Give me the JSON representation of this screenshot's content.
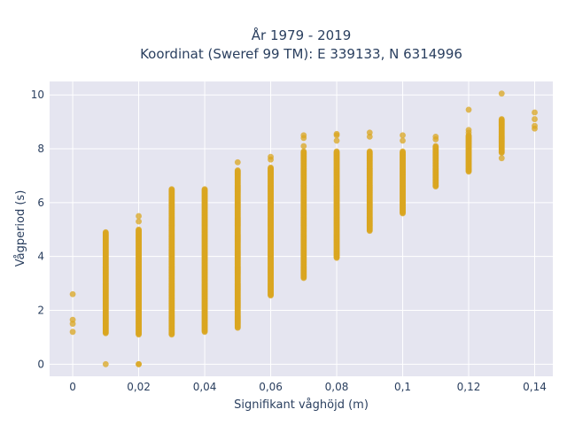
{
  "chart_data": {
    "type": "scatter",
    "title": [
      "År 1979 - 2019",
      "Koordinat (Sweref 99 TM): E 339133, N 6314996"
    ],
    "xlabel": "Signifikant våghöjd (m)",
    "ylabel": "Vågperiod (s)",
    "xlim": [
      -0.007,
      0.1455
    ],
    "ylim": [
      -0.45,
      10.5
    ],
    "grid": true,
    "xticks": [
      0,
      0.02,
      0.04,
      0.06,
      0.08,
      0.1,
      0.12,
      0.14
    ],
    "xtick_labels": [
      "0",
      "0,02",
      "0,04",
      "0,06",
      "0,08",
      "0,1",
      "0,12",
      "0,14"
    ],
    "yticks": [
      0,
      2,
      4,
      6,
      8,
      10
    ],
    "ytick_labels": [
      "0",
      "2",
      "4",
      "6",
      "8",
      "10"
    ],
    "marker_color": "#DAA520",
    "columns": [
      {
        "x": 0,
        "outliers": [
          2.6,
          1.65,
          1.5,
          1.2
        ]
      },
      {
        "x": 0.01,
        "range": [
          1.15,
          4.9
        ],
        "outliers": [
          0
        ]
      },
      {
        "x": 0.02,
        "range": [
          1.1,
          5.0
        ],
        "outliers": [
          5.5,
          5.3,
          0,
          0
        ]
      },
      {
        "x": 0.03,
        "range": [
          1.1,
          6.5
        ]
      },
      {
        "x": 0.04,
        "range": [
          1.2,
          6.5
        ]
      },
      {
        "x": 0.05,
        "range": [
          1.35,
          7.2
        ],
        "outliers": [
          7.5
        ]
      },
      {
        "x": 0.06,
        "range": [
          2.55,
          7.3
        ],
        "outliers": [
          7.7,
          7.6
        ]
      },
      {
        "x": 0.07,
        "range": [
          3.2,
          7.9
        ],
        "outliers": [
          8.5,
          8.4,
          8.1
        ]
      },
      {
        "x": 0.08,
        "range": [
          3.95,
          7.9
        ],
        "outliers": [
          8.55,
          8.5,
          8.3
        ]
      },
      {
        "x": 0.09,
        "range": [
          4.95,
          7.9
        ],
        "outliers": [
          8.6,
          8.45
        ]
      },
      {
        "x": 0.1,
        "range": [
          5.6,
          7.9
        ],
        "outliers": [
          8.5,
          8.3
        ]
      },
      {
        "x": 0.11,
        "range": [
          6.6,
          8.1
        ],
        "outliers": [
          8.45,
          8.35
        ]
      },
      {
        "x": 0.12,
        "range": [
          7.15,
          8.5
        ],
        "outliers": [
          9.45,
          8.7,
          8.6
        ]
      },
      {
        "x": 0.13,
        "range": [
          7.85,
          9.1
        ],
        "outliers": [
          10.05,
          7.65
        ]
      },
      {
        "x": 0.14,
        "outliers": [
          9.35,
          9.1,
          8.85,
          8.75
        ]
      }
    ]
  }
}
